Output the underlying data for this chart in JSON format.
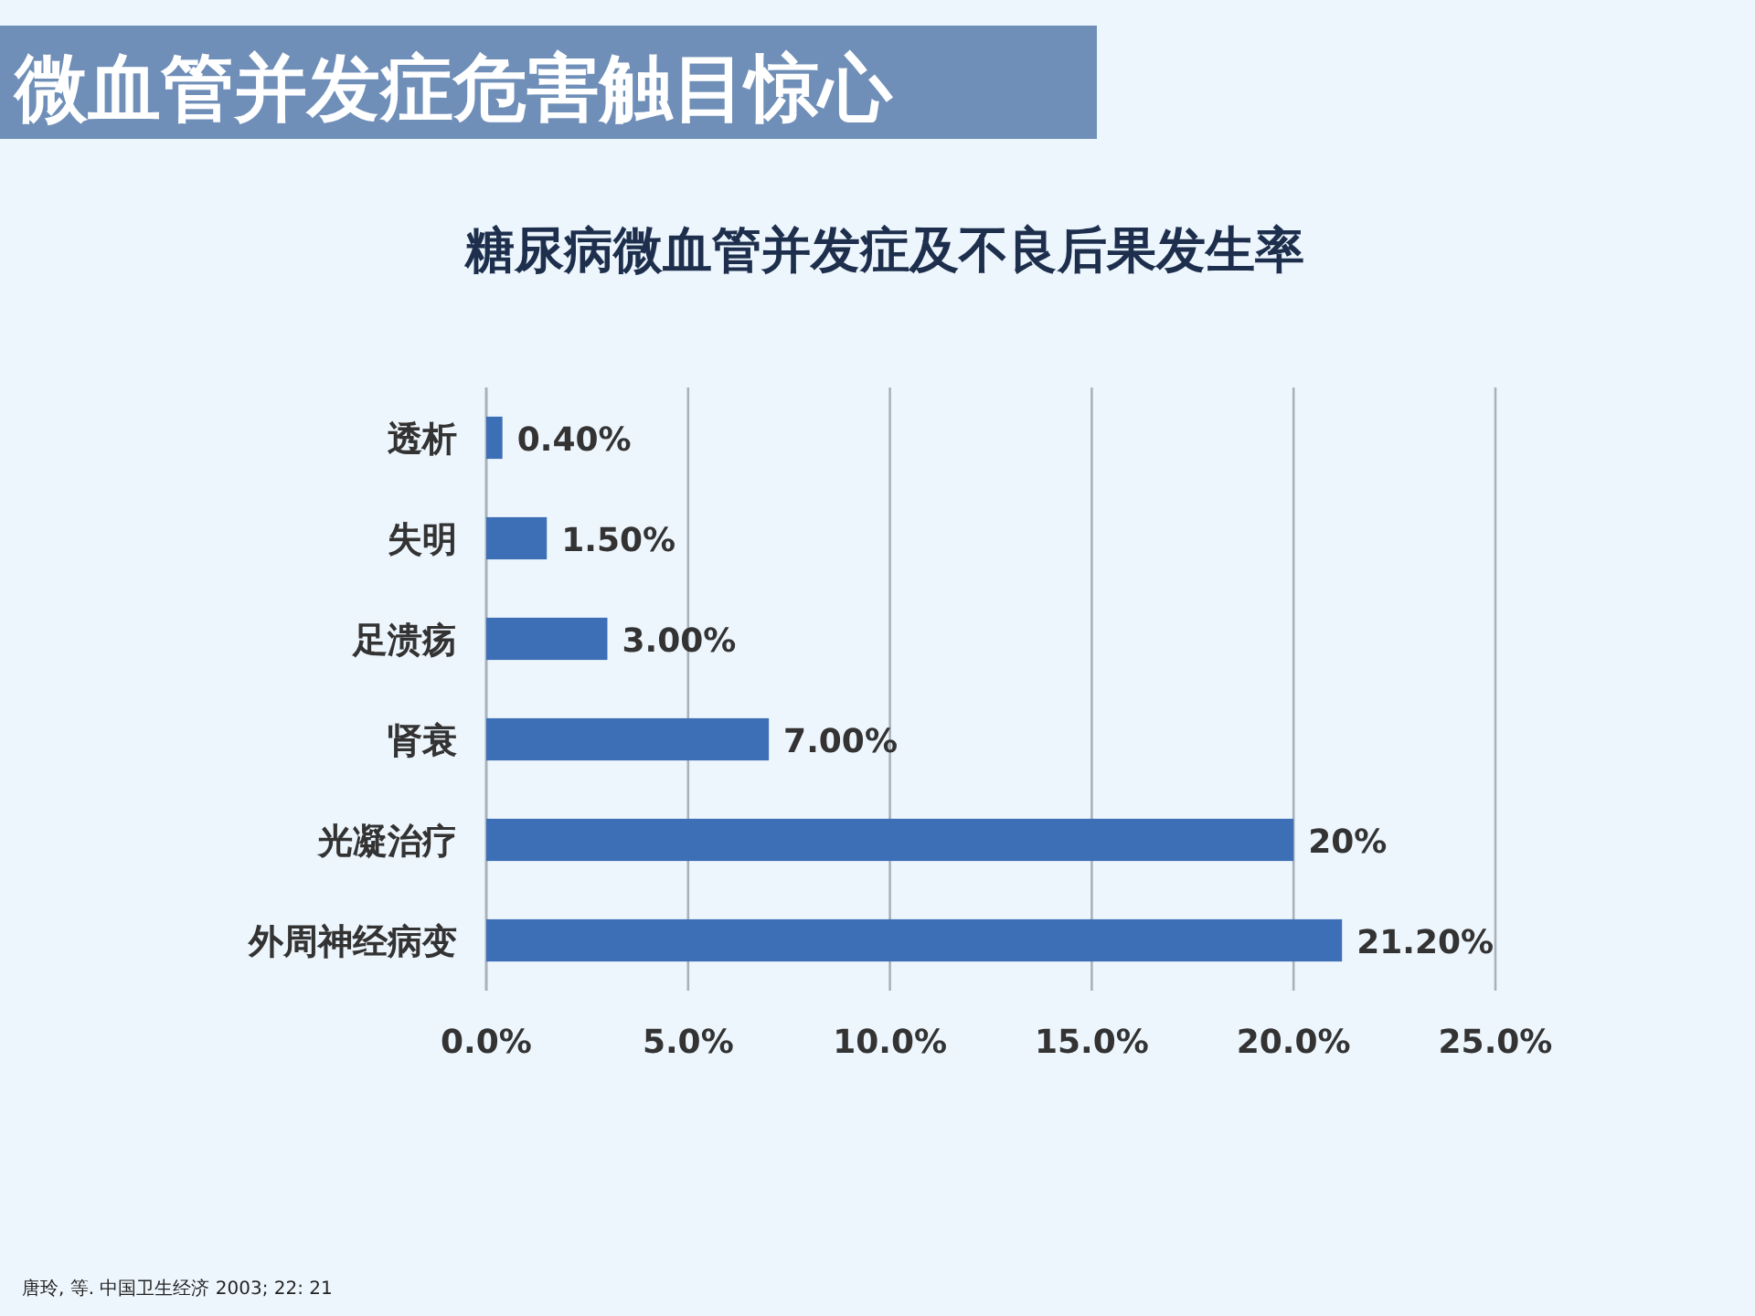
{
  "chart_data": {
    "type": "bar",
    "orientation": "horizontal",
    "title": "微血管并发症危害触目惊心",
    "subtitle": "糖尿病微血管并发症及不良后果发生率",
    "categories": [
      "透析",
      "失明",
      "足溃疡",
      "肾衰",
      "光凝治疗",
      "外周神经病变"
    ],
    "values": [
      0.4,
      1.5,
      3,
      7,
      20,
      21.2
    ],
    "value_labels": [
      "0.40%",
      "1.50%",
      "3.00%",
      "7.00%",
      "20%",
      "21.20%"
    ],
    "color": "#3c6fb6",
    "xlim": [
      0,
      25
    ],
    "xticks": [
      {
        "value": 0,
        "label": "0.0%"
      },
      {
        "value": 5,
        "label": "5.0%"
      },
      {
        "value": 10,
        "label": "10.0%"
      },
      {
        "value": 15,
        "label": "15.0%"
      },
      {
        "value": 20,
        "label": "20.0%"
      },
      {
        "value": 25,
        "label": "25.0%"
      }
    ],
    "grid": "x",
    "annotations": [
      "唐玲, 等. 中国卫生经济 2003; 22: 21"
    ]
  }
}
